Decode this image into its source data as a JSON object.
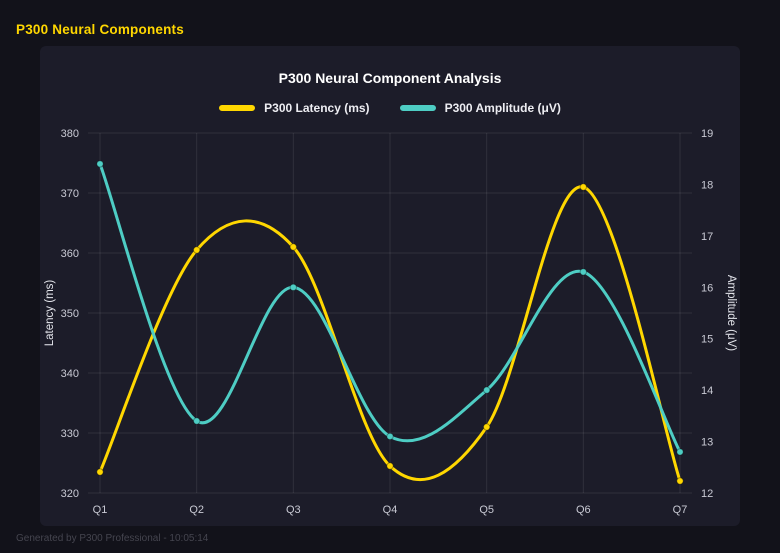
{
  "page": {
    "header_title": "P300 Neural Components",
    "footer": "Generated by P300 Professional - 10:05:14"
  },
  "chart_data": {
    "type": "line",
    "title": "P300 Neural Component Analysis",
    "categories": [
      "Q1",
      "Q2",
      "Q3",
      "Q4",
      "Q5",
      "Q6",
      "Q7"
    ],
    "series": [
      {
        "name": "P300 Latency (ms)",
        "color": "#ffd700",
        "axis": "left",
        "values": [
          323.5,
          360.5,
          361,
          324.5,
          331,
          371,
          322
        ]
      },
      {
        "name": "P300 Amplitude (μV)",
        "color": "#4ecdc4",
        "axis": "right",
        "values": [
          18.4,
          13.4,
          16.0,
          13.1,
          14.0,
          16.3,
          12.8
        ]
      }
    ],
    "left_axis": {
      "label": "Latency (ms)",
      "min": 320,
      "max": 380,
      "step": 10
    },
    "right_axis": {
      "label": "Amplitude (μV)",
      "min": 12,
      "max": 19,
      "step": 1
    },
    "grid": true,
    "legend_position": "top",
    "curve": "smooth"
  }
}
